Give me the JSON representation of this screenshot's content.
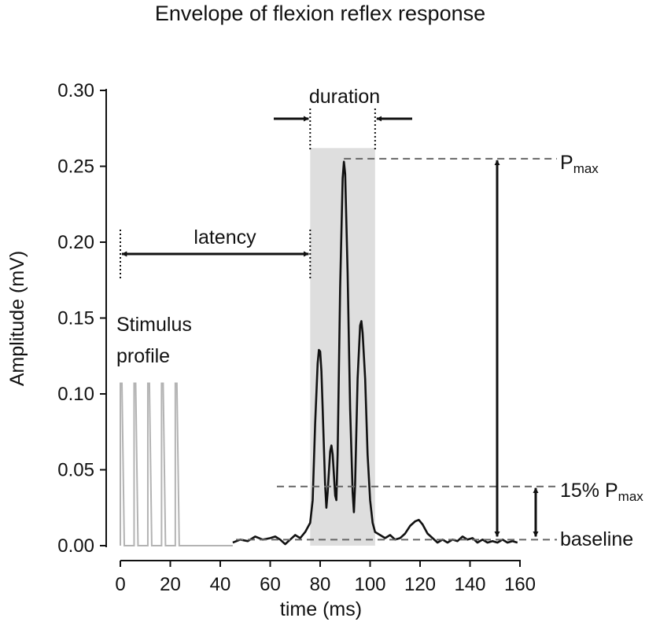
{
  "chart_data": {
    "type": "line",
    "title": "Envelope of flexion reflex response",
    "xlabel": "time (ms)",
    "ylabel": "Amplitude (mV)",
    "xlim": [
      0,
      160
    ],
    "ylim": [
      0,
      0.3
    ],
    "x_ticks": [
      "0",
      "20",
      "40",
      "60",
      "80",
      "100",
      "120",
      "140",
      "160"
    ],
    "y_ticks": [
      "0.00",
      "0.05",
      "0.10",
      "0.15",
      "0.20",
      "0.25",
      "0.30"
    ],
    "grid": false,
    "legend": "none",
    "colors": {
      "response": "#111111",
      "stimulus": "#b3b3b3",
      "window": "#dedede",
      "dashed": "#666666"
    },
    "series": [
      {
        "role": "response envelope",
        "points": [
          [
            45,
            0.002
          ],
          [
            48,
            0.004
          ],
          [
            51,
            0.003
          ],
          [
            54,
            0.006
          ],
          [
            57,
            0.004
          ],
          [
            60,
            0.005
          ],
          [
            62,
            0.006
          ],
          [
            64,
            0.004
          ],
          [
            66,
            0.001
          ],
          [
            68,
            0.004
          ],
          [
            70,
            0.007
          ],
          [
            72,
            0.005
          ],
          [
            74,
            0.009
          ],
          [
            76,
            0.015
          ],
          [
            77,
            0.03
          ],
          [
            78,
            0.08
          ],
          [
            79,
            0.12
          ],
          [
            79.5,
            0.129
          ],
          [
            80,
            0.128
          ],
          [
            80.5,
            0.115
          ],
          [
            81,
            0.09
          ],
          [
            82,
            0.04
          ],
          [
            82.5,
            0.025
          ],
          [
            83,
            0.035
          ],
          [
            84,
            0.062
          ],
          [
            84.5,
            0.066
          ],
          [
            85,
            0.06
          ],
          [
            86,
            0.033
          ],
          [
            86.5,
            0.03
          ],
          [
            87,
            0.06
          ],
          [
            88,
            0.17
          ],
          [
            89,
            0.242
          ],
          [
            89.5,
            0.253
          ],
          [
            90,
            0.245
          ],
          [
            91,
            0.18
          ],
          [
            92,
            0.09
          ],
          [
            93,
            0.035
          ],
          [
            93.5,
            0.022
          ],
          [
            94,
            0.04
          ],
          [
            95,
            0.11
          ],
          [
            96,
            0.145
          ],
          [
            96.5,
            0.148
          ],
          [
            97,
            0.14
          ],
          [
            98,
            0.11
          ],
          [
            99,
            0.06
          ],
          [
            100,
            0.03
          ],
          [
            101,
            0.015
          ],
          [
            102,
            0.009
          ],
          [
            104,
            0.007
          ],
          [
            106,
            0.005
          ],
          [
            108,
            0.007
          ],
          [
            110,
            0.004
          ],
          [
            112,
            0.005
          ],
          [
            114,
            0.008
          ],
          [
            116,
            0.013
          ],
          [
            118,
            0.016
          ],
          [
            119.5,
            0.017
          ],
          [
            121,
            0.014
          ],
          [
            123,
            0.008
          ],
          [
            125,
            0.005
          ],
          [
            127,
            0.002
          ],
          [
            129,
            0.004
          ],
          [
            131,
            0.002
          ],
          [
            133,
            0.004
          ],
          [
            135,
            0.003
          ],
          [
            137,
            0.006
          ],
          [
            139,
            0.004
          ],
          [
            141,
            0.005
          ],
          [
            143,
            0.002
          ],
          [
            145,
            0.004
          ],
          [
            147,
            0.002
          ],
          [
            149,
            0.003
          ],
          [
            151,
            0.002
          ],
          [
            153,
            0.004
          ],
          [
            155,
            0.002
          ],
          [
            157,
            0.003
          ],
          [
            159,
            0.002
          ]
        ]
      },
      {
        "role": "stimulus profile",
        "pulse_times_ms": [
          0,
          5.5,
          11,
          16.5,
          22
        ],
        "pulse_amplitude": 0.107,
        "baseline_end_ms": 45
      }
    ],
    "response_window_ms": [
      76,
      102
    ],
    "response_window_top": 0.262,
    "latency_ms": [
      0,
      76
    ],
    "pmax": 0.255,
    "pmax_time_ms": 89.5,
    "threshold_15pct": 0.039,
    "baseline_level": 0.005,
    "annotations": {
      "duration": "duration",
      "latency": "latency",
      "stimulus_line1": "Stimulus",
      "stimulus_line2": "profile",
      "pmax_main": "P",
      "pmax_sub": "max",
      "threshold_main": "15% P",
      "threshold_sub": "max",
      "baseline": "baseline"
    }
  }
}
